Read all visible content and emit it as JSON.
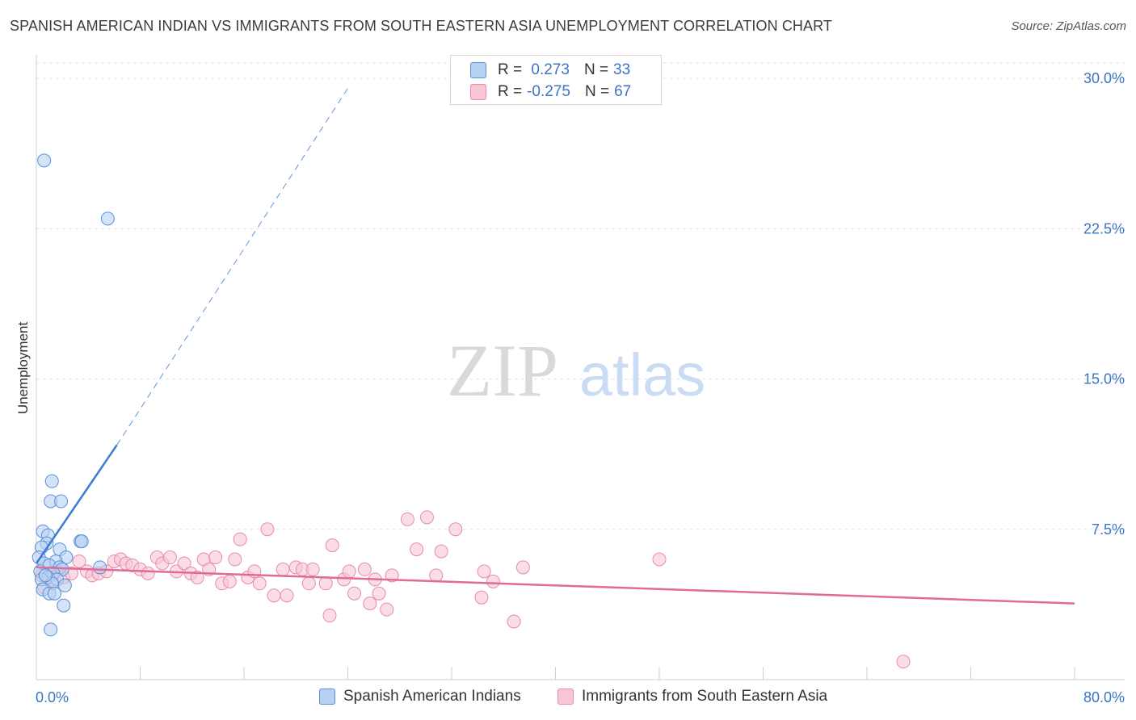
{
  "title": "SPANISH AMERICAN INDIAN VS IMMIGRANTS FROM SOUTH EASTERN ASIA UNEMPLOYMENT CORRELATION CHART",
  "source": "Source: ZipAtlas.com",
  "watermark": {
    "zip": "ZIP",
    "atlas": "atlas"
  },
  "legend": {
    "rows": [
      {
        "r_label": "R =",
        "r_value": " 0.273",
        "n_label": "N =",
        "n_value": "33"
      },
      {
        "r_label": "R =",
        "r_value": "-0.275",
        "n_label": "N =",
        "n_value": "67"
      }
    ]
  },
  "colors": {
    "series1_fill": "#b8d1f3",
    "series1_stroke": "#5a8fd8",
    "series1_line": "#3a7bd5",
    "series2_fill": "#f9c6d5",
    "series2_stroke": "#e88aa8",
    "series2_line": "#e06b98",
    "tick": "#3b74c4"
  },
  "chart_data": {
    "type": "scatter",
    "xlabel": "",
    "ylabel": "Unemployment",
    "xlim": [
      0,
      80
    ],
    "ylim": [
      0,
      30
    ],
    "x_ticks": [
      "0.0%",
      "80.0%"
    ],
    "y_ticks": [
      {
        "value": 7.5,
        "label": "7.5%"
      },
      {
        "value": 15.0,
        "label": "15.0%"
      },
      {
        "value": 22.5,
        "label": "22.5%"
      },
      {
        "value": 30.0,
        "label": "30.0%"
      }
    ],
    "grid": true,
    "legend_position": "top-center",
    "series": [
      {
        "name": "Spanish American Indians",
        "r": 0.273,
        "n": 33,
        "trend": {
          "x0": 0.0,
          "y0": 5.8,
          "x1": 6.2,
          "y1": 11.7,
          "dash_to_x": 24.0,
          "dash_to_y": 29.5
        },
        "points": [
          [
            0.6,
            25.9
          ],
          [
            5.5,
            23.0
          ],
          [
            1.2,
            9.9
          ],
          [
            1.1,
            8.9
          ],
          [
            1.9,
            8.9
          ],
          [
            0.5,
            7.4
          ],
          [
            0.9,
            7.2
          ],
          [
            3.4,
            6.9
          ],
          [
            3.5,
            6.9
          ],
          [
            0.8,
            6.8
          ],
          [
            0.4,
            6.6
          ],
          [
            1.8,
            6.5
          ],
          [
            2.3,
            6.1
          ],
          [
            0.2,
            6.1
          ],
          [
            1.5,
            5.9
          ],
          [
            0.6,
            5.8
          ],
          [
            1.0,
            5.7
          ],
          [
            4.9,
            5.6
          ],
          [
            1.8,
            5.6
          ],
          [
            2.0,
            5.5
          ],
          [
            0.3,
            5.4
          ],
          [
            1.3,
            5.3
          ],
          [
            0.9,
            5.1
          ],
          [
            1.6,
            5.0
          ],
          [
            0.4,
            5.0
          ],
          [
            1.2,
            4.8
          ],
          [
            2.2,
            4.7
          ],
          [
            0.5,
            4.5
          ],
          [
            1.0,
            4.3
          ],
          [
            1.4,
            4.3
          ],
          [
            2.1,
            3.7
          ],
          [
            1.1,
            2.5
          ],
          [
            0.7,
            5.2
          ]
        ]
      },
      {
        "name": "Immigrants from South Eastern Asia",
        "r": -0.275,
        "n": 67,
        "trend": {
          "x0": 0.0,
          "y0": 5.6,
          "x1": 80.0,
          "y1": 3.8
        },
        "points": [
          [
            0.4,
            5.2
          ],
          [
            0.6,
            4.6
          ],
          [
            1.2,
            5.0
          ],
          [
            1.6,
            5.4
          ],
          [
            2.1,
            5.1
          ],
          [
            2.7,
            5.3
          ],
          [
            3.3,
            5.9
          ],
          [
            3.9,
            5.4
          ],
          [
            4.3,
            5.2
          ],
          [
            4.8,
            5.3
          ],
          [
            5.4,
            5.4
          ],
          [
            6.0,
            5.9
          ],
          [
            6.5,
            6.0
          ],
          [
            6.9,
            5.8
          ],
          [
            7.4,
            5.7
          ],
          [
            8.0,
            5.5
          ],
          [
            8.6,
            5.3
          ],
          [
            9.3,
            6.1
          ],
          [
            9.7,
            5.8
          ],
          [
            10.3,
            6.1
          ],
          [
            10.8,
            5.4
          ],
          [
            11.4,
            5.8
          ],
          [
            11.9,
            5.3
          ],
          [
            12.4,
            5.1
          ],
          [
            12.9,
            6.0
          ],
          [
            13.3,
            5.5
          ],
          [
            13.8,
            6.1
          ],
          [
            14.3,
            4.8
          ],
          [
            14.9,
            4.9
          ],
          [
            15.3,
            6.0
          ],
          [
            15.7,
            7.0
          ],
          [
            16.3,
            5.1
          ],
          [
            16.8,
            5.4
          ],
          [
            17.2,
            4.8
          ],
          [
            17.8,
            7.5
          ],
          [
            18.3,
            4.2
          ],
          [
            19.0,
            5.5
          ],
          [
            19.3,
            4.2
          ],
          [
            20.0,
            5.6
          ],
          [
            20.5,
            5.5
          ],
          [
            21.0,
            4.8
          ],
          [
            21.3,
            5.5
          ],
          [
            22.3,
            4.8
          ],
          [
            22.6,
            3.2
          ],
          [
            22.8,
            6.7
          ],
          [
            23.7,
            5.0
          ],
          [
            24.1,
            5.4
          ],
          [
            24.5,
            4.3
          ],
          [
            25.3,
            5.5
          ],
          [
            25.7,
            3.8
          ],
          [
            26.1,
            5.0
          ],
          [
            26.4,
            4.3
          ],
          [
            27.0,
            3.5
          ],
          [
            27.4,
            5.2
          ],
          [
            28.6,
            8.0
          ],
          [
            29.3,
            6.5
          ],
          [
            30.1,
            8.1
          ],
          [
            30.8,
            5.2
          ],
          [
            31.2,
            6.4
          ],
          [
            32.3,
            7.5
          ],
          [
            34.3,
            4.1
          ],
          [
            34.5,
            5.4
          ],
          [
            35.2,
            4.9
          ],
          [
            36.8,
            2.9
          ],
          [
            48.0,
            6.0
          ],
          [
            66.8,
            0.9
          ],
          [
            37.5,
            5.6
          ]
        ]
      }
    ]
  }
}
